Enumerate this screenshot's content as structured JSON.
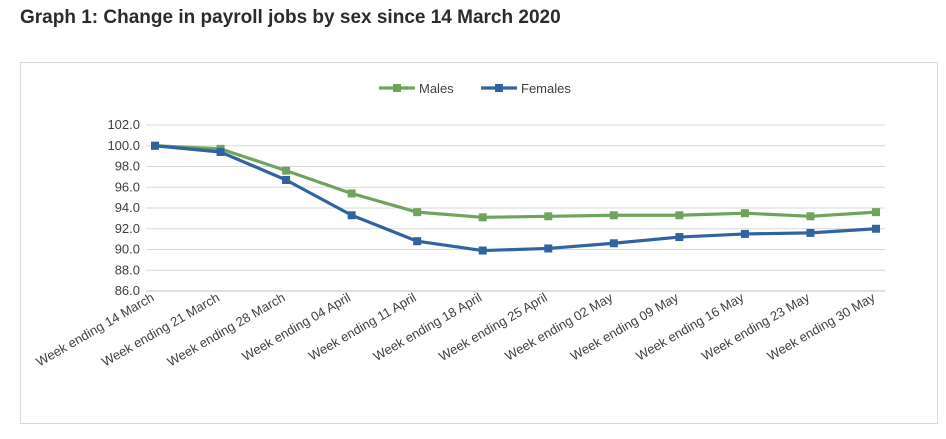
{
  "page": {
    "title": "Graph 1: Change in payroll jobs by sex since 14 March 2020"
  },
  "chart_data": {
    "type": "line",
    "categories": [
      "Week ending 14 March",
      "Week ending 21 March",
      "Week ending 28 March",
      "Week ending 04 April",
      "Week ending 11 April",
      "Week ending 18 April",
      "Week ending 25 April",
      "Week ending 02 May",
      "Week ending 09 May",
      "Week ending 16 May",
      "Week ending 23 May",
      "Week ending 30 May"
    ],
    "series": [
      {
        "name": "Males",
        "color": "#70a35e",
        "values": [
          100.0,
          99.7,
          97.6,
          95.4,
          93.6,
          93.1,
          93.2,
          93.3,
          93.3,
          93.5,
          93.2,
          93.6
        ]
      },
      {
        "name": "Females",
        "color": "#31649e",
        "values": [
          100.0,
          99.4,
          96.7,
          93.3,
          90.8,
          89.9,
          90.1,
          90.6,
          91.2,
          91.5,
          91.6,
          92.0
        ]
      }
    ],
    "y_ticks": [
      "102.0",
      "100.0",
      "98.0",
      "96.0",
      "94.0",
      "92.0",
      "90.0",
      "88.0",
      "86.0"
    ],
    "ylim": [
      86,
      102
    ],
    "grid": true,
    "legend_position": "top-center",
    "xlabel": "",
    "ylabel": ""
  }
}
